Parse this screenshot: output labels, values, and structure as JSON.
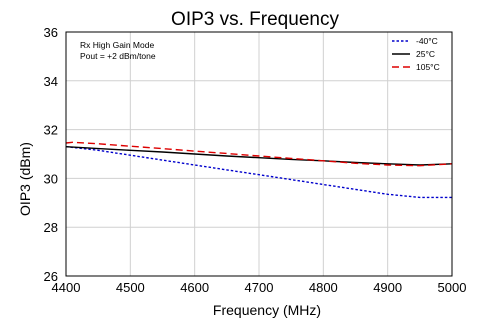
{
  "chart_data": {
    "type": "line",
    "title": "OIP3 vs. Frequency",
    "xlabel": "Frequency (MHz)",
    "ylabel": "OIP3 (dBm)",
    "xlim": [
      4400,
      5000
    ],
    "ylim": [
      26,
      36
    ],
    "xticks": [
      4400,
      4500,
      4600,
      4700,
      4800,
      4900,
      5000
    ],
    "yticks": [
      26,
      28,
      30,
      32,
      34,
      36
    ],
    "grid": true,
    "legend_position": "top-right",
    "annotations": [
      "Rx High Gain Mode",
      "Pout = +2 dBm/tone"
    ],
    "series": [
      {
        "name": "-40°C",
        "color": "#0000cc",
        "dash": "dotted",
        "x": [
          4400,
          4450,
          4500,
          4550,
          4600,
          4650,
          4700,
          4750,
          4800,
          4850,
          4900,
          4950,
          5000
        ],
        "y": [
          31.3,
          31.15,
          30.95,
          30.75,
          30.55,
          30.35,
          30.15,
          29.95,
          29.75,
          29.55,
          29.35,
          29.22,
          29.22
        ]
      },
      {
        "name": "25°C",
        "color": "#000000",
        "dash": "solid",
        "x": [
          4400,
          4450,
          4500,
          4550,
          4600,
          4650,
          4700,
          4750,
          4800,
          4850,
          4900,
          4950,
          5000
        ],
        "y": [
          31.3,
          31.22,
          31.15,
          31.08,
          31.0,
          30.92,
          30.85,
          30.78,
          30.72,
          30.65,
          30.6,
          30.55,
          30.6
        ]
      },
      {
        "name": "105°C",
        "color": "#dd0000",
        "dash": "dashed",
        "x": [
          4400,
          4410,
          4450,
          4500,
          4550,
          4600,
          4650,
          4700,
          4750,
          4800,
          4850,
          4900,
          4950,
          5000
        ],
        "y": [
          31.45,
          31.48,
          31.42,
          31.32,
          31.22,
          31.12,
          31.02,
          30.92,
          30.82,
          30.72,
          30.62,
          30.55,
          30.52,
          30.6
        ]
      }
    ]
  }
}
